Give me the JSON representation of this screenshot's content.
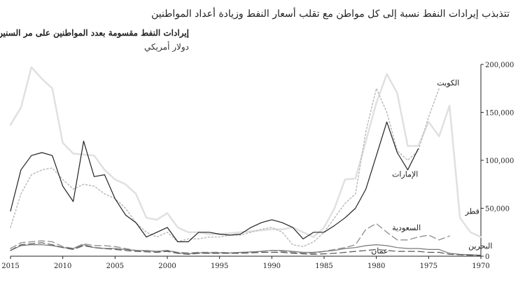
{
  "title": "تتذبذب إيرادات النفط نسبة إلى كل مواطن مع تقلب أسعار النفط وزيادة أعداد المواطنين",
  "subtitle": "إيرادات النفط مقسومة بعدد المواطنين على مر السنين",
  "unit": "دولار أمريكي",
  "chart_data": {
    "type": "line",
    "x_axis": {
      "reversed": true,
      "min": 1970,
      "max": 2015,
      "ticks": [
        2015,
        2010,
        2005,
        2000,
        1995,
        1990,
        1985,
        1980,
        1975,
        1970
      ]
    },
    "y_axis": {
      "position": "right",
      "min": 0,
      "max": 200000,
      "ticks": [
        0,
        50000,
        100000,
        150000,
        200000
      ],
      "tick_labels": [
        "0",
        "50,000",
        "100,000",
        "150,000",
        "200,000"
      ]
    },
    "grid": false,
    "legend": "inline labels",
    "series": [
      {
        "name": "قطر",
        "color": "#e0e0e0",
        "dash": "solid",
        "width": 2.5,
        "x": [
          2015,
          2014,
          2013,
          2012,
          2011,
          2010,
          2009,
          2008,
          2007,
          2006,
          2005,
          2004,
          2003,
          2002,
          2001,
          2000,
          1999,
          1998,
          1997,
          1996,
          1995,
          1994,
          1993,
          1992,
          1991,
          1990,
          1989,
          1988,
          1987,
          1986,
          1985,
          1984,
          1983,
          1982,
          1981,
          1980,
          1979,
          1978,
          1977,
          1976,
          1975,
          1974,
          1973,
          1972,
          1971,
          1970
        ],
        "y": [
          137000,
          155000,
          197000,
          185000,
          175000,
          118000,
          107000,
          106000,
          105000,
          90000,
          80000,
          75000,
          65000,
          40000,
          38000,
          45000,
          30000,
          25000,
          25000,
          23000,
          23000,
          24000,
          25000,
          26000,
          27000,
          28000,
          28000,
          30000,
          25000,
          20000,
          30000,
          50000,
          80000,
          81000,
          120000,
          160000,
          190000,
          170000,
          115000,
          115000,
          140000,
          125000,
          157000,
          40000,
          25000,
          20000
        ]
      },
      {
        "name": "الكويت",
        "color": "#bbbbbb",
        "dash": "dotted",
        "width": 1.5,
        "x": [
          2015,
          2014,
          2013,
          2012,
          2011,
          2010,
          2009,
          2008,
          2007,
          2006,
          2005,
          2004,
          2003,
          2002,
          2001,
          2000,
          1999,
          1998,
          1997,
          1996,
          1995,
          1994,
          1993,
          1992,
          1991,
          1990,
          1989,
          1988,
          1987,
          1986,
          1985,
          1984,
          1983,
          1982,
          1981,
          1980,
          1979,
          1978,
          1977,
          1976,
          1975,
          1974
        ],
        "y": [
          30000,
          65000,
          85000,
          90000,
          92000,
          80000,
          70000,
          75000,
          73000,
          65000,
          60000,
          50000,
          35000,
          25000,
          20000,
          25000,
          15000,
          18000,
          18000,
          20000,
          20000,
          22000,
          22000,
          25000,
          28000,
          30000,
          25000,
          12000,
          10000,
          15000,
          25000,
          40000,
          55000,
          65000,
          130000,
          175000,
          150000,
          110000,
          100000,
          110000,
          145000,
          175000
        ]
      },
      {
        "name": "الإمارات",
        "color": "#222222",
        "dash": "solid",
        "width": 1.2,
        "x": [
          2015,
          2014,
          2013,
          2012,
          2011,
          2010,
          2009,
          2008,
          2007,
          2006,
          2005,
          2004,
          2003,
          2002,
          2001,
          2000,
          1999,
          1998,
          1997,
          1996,
          1995,
          1994,
          1993,
          1992,
          1991,
          1990,
          1989,
          1988,
          1987,
          1986,
          1985,
          1984,
          1983,
          1982,
          1981,
          1980,
          1979,
          1978,
          1977,
          1976
        ],
        "y": [
          47000,
          90000,
          105000,
          108000,
          105000,
          73000,
          57000,
          120000,
          83000,
          85000,
          60000,
          43000,
          35000,
          20000,
          25000,
          30000,
          15000,
          15000,
          25000,
          25000,
          23000,
          22000,
          23000,
          30000,
          35000,
          38000,
          35000,
          30000,
          18000,
          25000,
          25000,
          32000,
          40000,
          50000,
          70000,
          105000,
          140000,
          108000,
          90000,
          112000
        ]
      },
      {
        "name": "السعودية",
        "color": "#999999",
        "dash": "dashed",
        "width": 1.5,
        "x": [
          2015,
          2014,
          2013,
          2012,
          2011,
          2010,
          2009,
          2008,
          2007,
          2006,
          2005,
          2004,
          2003,
          2002,
          2001,
          2000,
          1999,
          1998,
          1997,
          1996,
          1995,
          1994,
          1993,
          1992,
          1991,
          1990,
          1989,
          1988,
          1987,
          1986,
          1985,
          1984,
          1983,
          1982,
          1981,
          1980,
          1979,
          1978,
          1977,
          1976,
          1975,
          1974,
          1973
        ],
        "y": [
          8000,
          14000,
          15000,
          16000,
          15000,
          10000,
          8000,
          13000,
          11000,
          11000,
          10000,
          8000,
          6000,
          5000,
          5000,
          6000,
          4000,
          3500,
          4000,
          4000,
          4000,
          3500,
          3500,
          4000,
          5000,
          6000,
          5000,
          4000,
          3000,
          3000,
          5000,
          7000,
          9000,
          12000,
          28000,
          34000,
          25000,
          17000,
          17000,
          20000,
          22000,
          17000,
          21000
        ]
      },
      {
        "name": "البحرين",
        "color": "#777777",
        "dash": "solid",
        "width": 1.2,
        "x": [
          2015,
          2014,
          2013,
          2012,
          2011,
          2010,
          2009,
          2008,
          2007,
          2006,
          2005,
          2004,
          2003,
          2002,
          2001,
          2000,
          1999,
          1998,
          1997,
          1996,
          1995,
          1994,
          1993,
          1992,
          1991,
          1990,
          1989,
          1988,
          1987,
          1986,
          1985,
          1984,
          1983,
          1982,
          1981,
          1980,
          1979,
          1978,
          1977,
          1976,
          1975,
          1974,
          1973,
          1972,
          1971,
          1970
        ],
        "y": [
          6000,
          11000,
          12000,
          12000,
          11000,
          9000,
          8000,
          12000,
          9000,
          8000,
          8000,
          7000,
          6000,
          6000,
          5000,
          6000,
          3500,
          2500,
          3500,
          3500,
          3500,
          3500,
          4000,
          4500,
          5000,
          6000,
          6000,
          5000,
          4000,
          4000,
          5000,
          6000,
          8000,
          9000,
          11000,
          12000,
          11000,
          9000,
          8000,
          8000,
          7000,
          7000,
          3000,
          2000,
          1500,
          1000
        ]
      },
      {
        "name": "عمان",
        "color": "#555555",
        "dash": "dashed",
        "width": 1.2,
        "x": [
          2015,
          2014,
          2013,
          2012,
          2011,
          2010,
          2009,
          2008,
          2007,
          2006,
          2005,
          2004,
          2003,
          2002,
          2001,
          2000,
          1999,
          1998,
          1997,
          1996,
          1995,
          1994,
          1993,
          1992,
          1991,
          1990,
          1989,
          1988,
          1987,
          1986,
          1985,
          1984,
          1983,
          1982,
          1981,
          1980,
          1979,
          1978,
          1977,
          1976,
          1975,
          1974,
          1973,
          1972,
          1971,
          1970
        ],
        "y": [
          6000,
          12000,
          13000,
          14000,
          12000,
          9000,
          7000,
          11000,
          9000,
          8000,
          7000,
          6000,
          5000,
          4500,
          4000,
          5000,
          3000,
          2000,
          3000,
          3000,
          3000,
          3000,
          3000,
          3500,
          4000,
          4000,
          4000,
          3000,
          2500,
          2000,
          2500,
          3000,
          4000,
          5000,
          6000,
          7000,
          6000,
          5000,
          5000,
          5000,
          4000,
          4000,
          2000,
          1500,
          1000,
          800
        ]
      }
    ]
  }
}
